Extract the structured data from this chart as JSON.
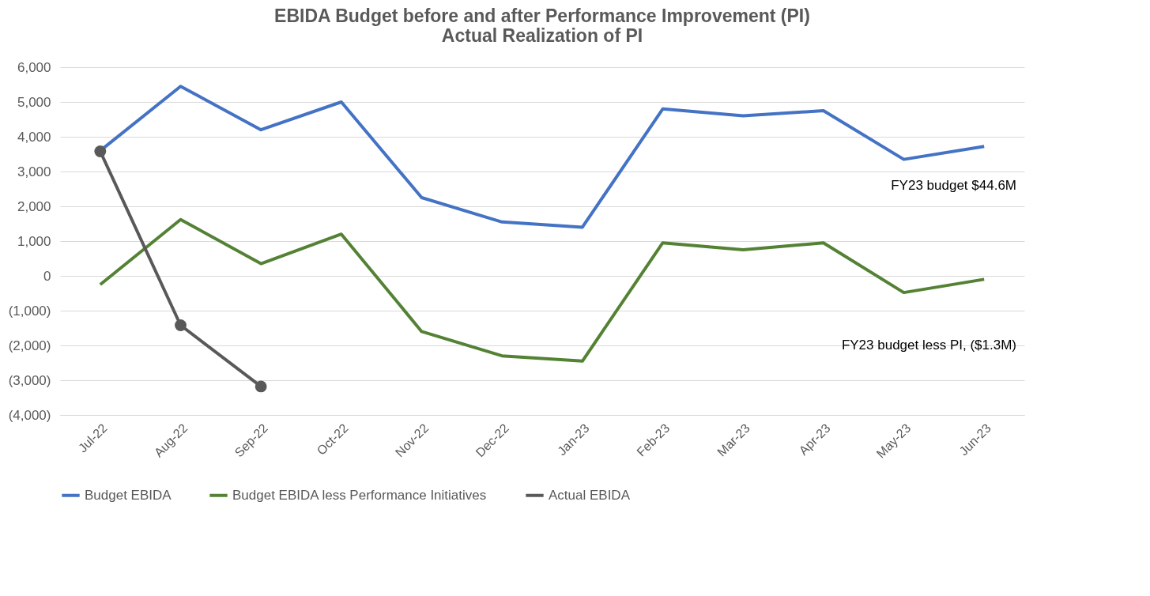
{
  "chart_data": {
    "type": "line",
    "title": [
      "EBIDA Budget before and after Performance Improvement (PI)",
      "Actual Realization of PI"
    ],
    "categories": [
      "Jul-22",
      "Aug-22",
      "Sep-22",
      "Oct-22",
      "Nov-22",
      "Dec-22",
      "Jan-23",
      "Feb-23",
      "Mar-23",
      "Apr-23",
      "May-23",
      "Jun-23"
    ],
    "series": [
      {
        "name": "Budget EBIDA",
        "color": "#4472c4",
        "values": [
          3600,
          5450,
          4200,
          5000,
          2250,
          1550,
          1400,
          4800,
          4600,
          4750,
          3350,
          3720
        ]
      },
      {
        "name": "Budget EBIDA less Performance Initiatives",
        "color": "#548235",
        "values": [
          -250,
          1620,
          350,
          1200,
          -1600,
          -2300,
          -2450,
          950,
          750,
          950,
          -480,
          -100
        ]
      },
      {
        "name": "Actual EBIDA",
        "color": "#595959",
        "marker": "circle",
        "values": [
          3580,
          -1420,
          -3180,
          null,
          null,
          null,
          null,
          null,
          null,
          null,
          null,
          null
        ]
      }
    ],
    "ylim": [
      -4000,
      6000
    ],
    "yticks": [
      {
        "value": -4000,
        "label": "(4,000)"
      },
      {
        "value": -3000,
        "label": "(3,000)"
      },
      {
        "value": -2000,
        "label": "(2,000)"
      },
      {
        "value": -1000,
        "label": "(1,000)"
      },
      {
        "value": 0,
        "label": "0"
      },
      {
        "value": 1000,
        "label": "1,000"
      },
      {
        "value": 2000,
        "label": "2,000"
      },
      {
        "value": 3000,
        "label": "3,000"
      },
      {
        "value": 4000,
        "label": "4,000"
      },
      {
        "value": 5000,
        "label": "5,000"
      },
      {
        "value": 6000,
        "label": "6,000"
      }
    ],
    "annotations": [
      "FY23 budget $44.6M",
      "FY23 budget less PI, ($1.3M)"
    ],
    "grid": "y",
    "legend": "bottom",
    "line_style": "solid"
  }
}
